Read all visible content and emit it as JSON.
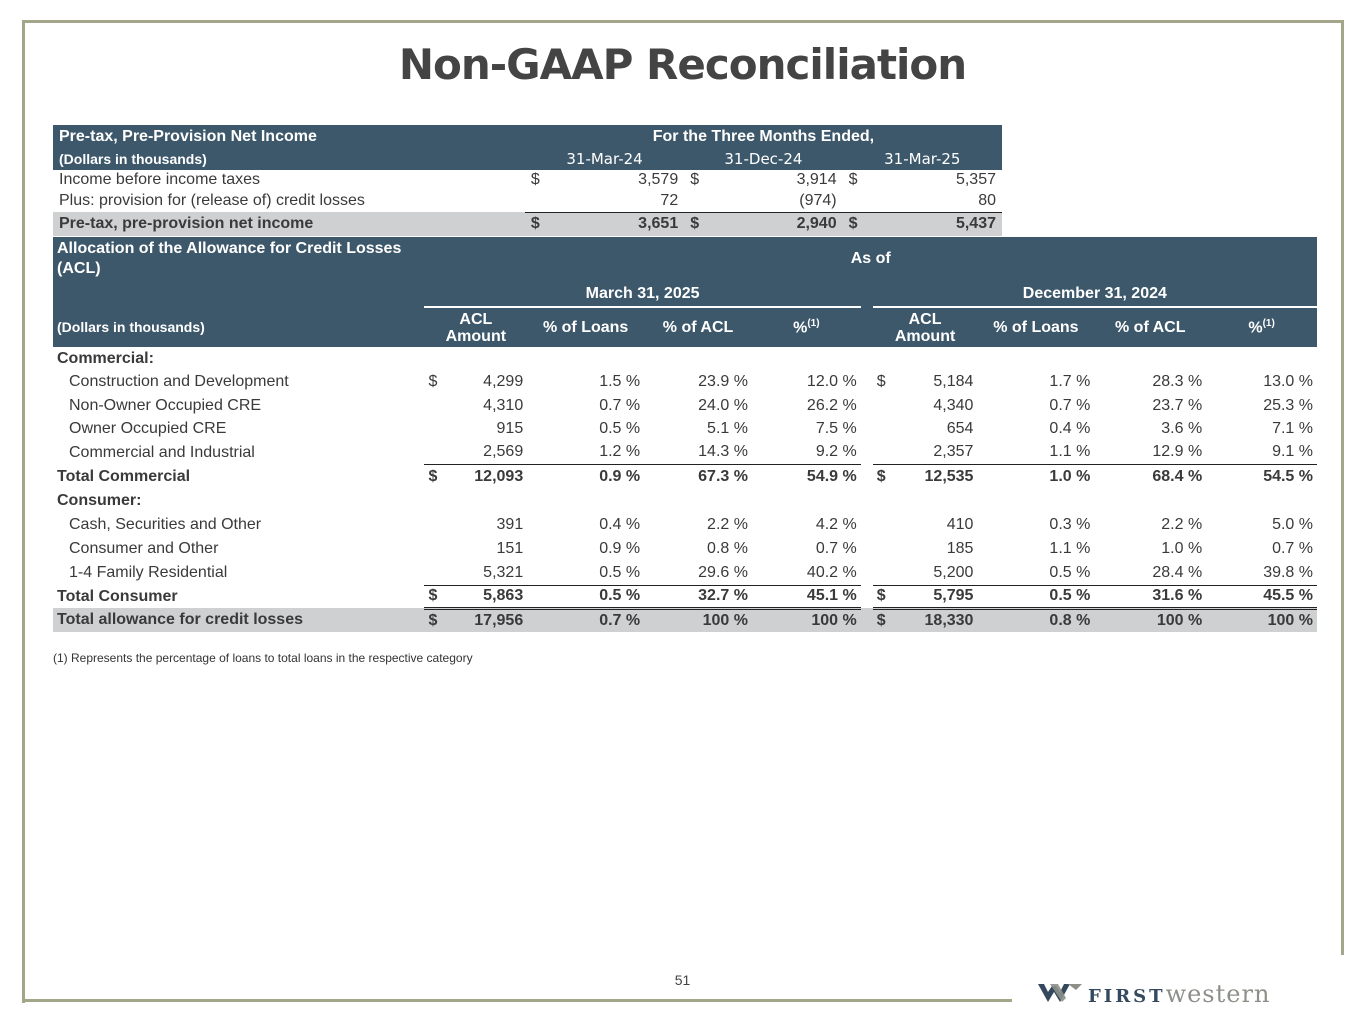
{
  "title": "Non-GAAP Reconciliation",
  "colors": {
    "header_bg": "#3d586b",
    "total_bg": "#cfd0d2",
    "frame": "#a3a689"
  },
  "ppni": {
    "header_label": "Pre-tax, Pre-Provision Net Income",
    "period_header": "For the Three Months Ended,",
    "units": "(Dollars in thousands)",
    "columns": [
      "31-Mar-24",
      "31-Dec-24",
      "31-Mar-25"
    ],
    "rows": [
      {
        "label": "Income before income taxes",
        "cur": "$",
        "values": [
          "3,579",
          "3,914",
          "5,357"
        ]
      },
      {
        "label": "Plus: provision for (release of) credit losses",
        "cur": "",
        "values": [
          "72",
          "(974)",
          "80"
        ]
      }
    ],
    "total": {
      "label": "Pre-tax, pre-provision net income",
      "cur": "$",
      "values": [
        "3,651",
        "2,940",
        "5,437"
      ]
    }
  },
  "acl": {
    "header_label": "Allocation of the Allowance for Credit Losses (ACL)",
    "as_of": "As of",
    "period1": "March 31, 2025",
    "period2": "December 31, 2024",
    "units": "(Dollars in thousands)",
    "col_headers": [
      "ACL Amount",
      "% of Loans",
      "% of ACL",
      "%"
    ],
    "footnote_mark": "(1)",
    "sections": {
      "commercial_label": "Commercial:",
      "consumer_label": "Consumer:"
    },
    "rows": {
      "cd": {
        "label": "Construction and Development",
        "p1": [
          "4,299",
          "1.5 %",
          "23.9 %",
          "12.0 %"
        ],
        "p2": [
          "5,184",
          "1.7 %",
          "28.3 %",
          "13.0 %"
        ]
      },
      "nooc": {
        "label": "Non-Owner Occupied CRE",
        "p1": [
          "4,310",
          "0.7 %",
          "24.0 %",
          "26.2 %"
        ],
        "p2": [
          "4,340",
          "0.7 %",
          "23.7 %",
          "25.3 %"
        ]
      },
      "ooc": {
        "label": "Owner Occupied CRE",
        "p1": [
          "915",
          "0.5 %",
          "5.1 %",
          "7.5 %"
        ],
        "p2": [
          "654",
          "0.4 %",
          "3.6 %",
          "7.1 %"
        ]
      },
      "ci": {
        "label": "Commercial and Industrial",
        "p1": [
          "2,569",
          "1.2 %",
          "14.3 %",
          "9.2 %"
        ],
        "p2": [
          "2,357",
          "1.1 %",
          "12.9 %",
          "9.1 %"
        ]
      },
      "tc": {
        "label": "Total Commercial",
        "p1": [
          "12,093",
          "0.9 %",
          "67.3 %",
          "54.9 %"
        ],
        "p2": [
          "12,535",
          "1.0 %",
          "68.4 %",
          "54.5 %"
        ]
      },
      "cso": {
        "label": "Cash, Securities and Other",
        "p1": [
          "391",
          "0.4 %",
          "2.2 %",
          "4.2 %"
        ],
        "p2": [
          "410",
          "0.3 %",
          "2.2 %",
          "5.0 %"
        ]
      },
      "co": {
        "label": "Consumer and Other",
        "p1": [
          "151",
          "0.9 %",
          "0.8 %",
          "0.7 %"
        ],
        "p2": [
          "185",
          "1.1 %",
          "1.0 %",
          "0.7 %"
        ]
      },
      "fr": {
        "label": "1-4 Family Residential",
        "p1": [
          "5,321",
          "0.5 %",
          "29.6 %",
          "40.2 %"
        ],
        "p2": [
          "5,200",
          "0.5 %",
          "28.4 %",
          "39.8 %"
        ]
      },
      "tcon": {
        "label": "Total Consumer",
        "p1": [
          "5,863",
          "0.5 %",
          "32.7 %",
          "45.1 %"
        ],
        "p2": [
          "5,795",
          "0.5 %",
          "31.6 %",
          "45.5 %"
        ]
      },
      "total": {
        "label": "Total allowance for credit losses",
        "p1": [
          "17,956",
          "0.7 %",
          "100 %",
          "100 %"
        ],
        "p2": [
          "18,330",
          "0.8 %",
          "100 %",
          "100 %"
        ]
      }
    },
    "cur": "$"
  },
  "footnote": "(1)  Represents the percentage of loans to total loans in the respective category",
  "page_number": "51",
  "logo": {
    "first": "FIRST",
    "western": "western",
    "icon": "w-logo-icon"
  }
}
